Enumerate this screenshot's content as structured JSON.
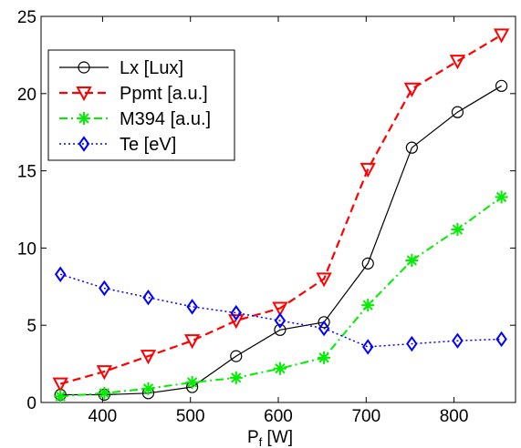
{
  "chart_data": {
    "type": "line",
    "xlabel_main": "P",
    "xlabel_sub": "f",
    "xlabel_unit": " [W]",
    "ylabel": "",
    "xlim": [
      330,
      870
    ],
    "ylim": [
      0,
      25
    ],
    "x_ticks": [
      400,
      500,
      600,
      700,
      800
    ],
    "y_ticks": [
      0,
      5,
      10,
      15,
      20,
      25
    ],
    "grid": false,
    "legend_position": "top-left",
    "x": [
      352,
      402,
      452,
      502,
      552,
      602,
      652,
      702,
      752,
      804,
      854
    ],
    "series": [
      {
        "name": "Lx [Lux]",
        "color": "#000000",
        "dash": "solid",
        "marker": "circle",
        "values": [
          0.5,
          0.5,
          0.6,
          1.0,
          3.0,
          4.7,
          5.2,
          9.0,
          16.5,
          18.8,
          20.5
        ]
      },
      {
        "name": "Ppmt [a.u.]",
        "color": "#ff0000",
        "dash": "dashed",
        "marker": "triangle-down",
        "values": [
          1.2,
          2.0,
          3.0,
          4.0,
          5.3,
          6.1,
          8.0,
          15.1,
          20.3,
          22.1,
          23.8
        ]
      },
      {
        "name": "M394 [a.u.]",
        "color": "#00ee00",
        "dash": "dashdot",
        "marker": "asterisk",
        "values": [
          0.4,
          0.6,
          0.9,
          1.3,
          1.6,
          2.2,
          2.9,
          6.3,
          9.2,
          11.2,
          13.3
        ]
      },
      {
        "name": "Te [eV]",
        "color": "#0000ff",
        "dash": "dotted",
        "marker": "diamond",
        "values": [
          8.3,
          7.4,
          6.8,
          6.2,
          5.8,
          5.3,
          4.8,
          3.6,
          3.8,
          4.0,
          4.1
        ]
      }
    ]
  }
}
